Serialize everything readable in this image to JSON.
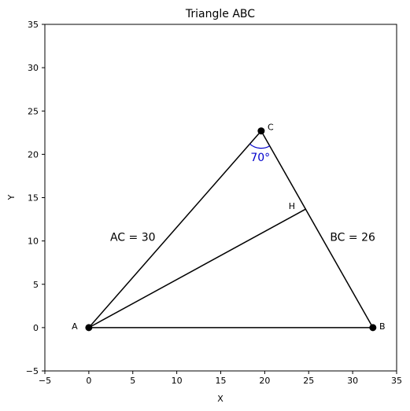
{
  "chart_data": {
    "type": "scatter",
    "title": "Triangle ABC",
    "xlabel": "X",
    "ylabel": "Y",
    "xlim": [
      -5,
      35
    ],
    "ylim": [
      -5,
      35
    ],
    "xticks": [
      -5,
      0,
      5,
      10,
      15,
      20,
      25,
      30,
      35
    ],
    "yticks": [
      -5,
      0,
      5,
      10,
      15,
      20,
      25,
      30,
      35
    ],
    "grid": false,
    "points": [
      {
        "name": "A",
        "x": 0,
        "y": 0
      },
      {
        "name": "B",
        "x": 32.3,
        "y": 0
      },
      {
        "name": "C",
        "x": 19.6,
        "y": 22.7
      }
    ],
    "segments": [
      {
        "name": "AB",
        "from": [
          0,
          0
        ],
        "to": [
          32.3,
          0
        ]
      },
      {
        "name": "BC",
        "from": [
          32.3,
          0
        ],
        "to": [
          19.6,
          22.7
        ]
      },
      {
        "name": "CA",
        "from": [
          19.6,
          22.7
        ],
        "to": [
          0,
          0
        ]
      },
      {
        "name": "AH",
        "from": [
          0,
          0
        ],
        "to": [
          24.7,
          13.7
        ]
      }
    ],
    "foot": {
      "name": "H",
      "x": 24.7,
      "y": 13.7
    },
    "side_labels": [
      {
        "text": "AC = 30",
        "x": 5,
        "y": 10
      },
      {
        "text": "BC = 26",
        "x": 30,
        "y": 10
      }
    ],
    "angle": {
      "text": "70°",
      "vertex": "C",
      "x": 19.5,
      "y": 19.2,
      "color": "#0000cc"
    },
    "colors": {
      "line": "#000000",
      "point": "#000000",
      "angle": "#0000cc"
    }
  }
}
